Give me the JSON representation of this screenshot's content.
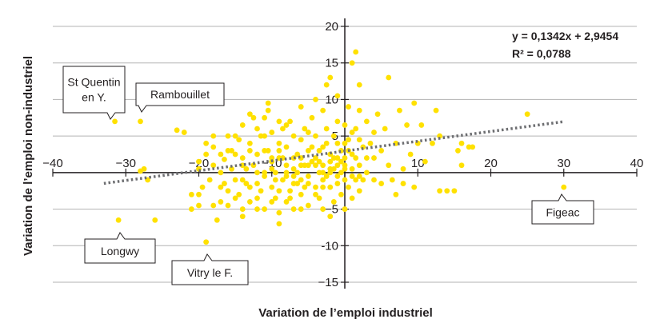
{
  "chart_data": {
    "type": "scatter",
    "xlabel": "Variation de l’emploi industriel",
    "ylabel": "Variation de l’emploi non-industriel",
    "xlim": [
      -40,
      40
    ],
    "ylim": [
      -15,
      20
    ],
    "x_ticks": [
      -40,
      -30,
      -20,
      -10,
      0,
      10,
      20,
      30,
      40
    ],
    "x_tick_labels": [
      "−40",
      "−30",
      "−20",
      "−10",
      "0",
      "10",
      "20",
      "30",
      "40"
    ],
    "y_ticks": [
      -15,
      -10,
      -5,
      0,
      5,
      10,
      15,
      20
    ],
    "y_tick_labels": [
      "−15",
      "-10",
      "−5",
      "0",
      "5",
      "10",
      "15",
      "20"
    ],
    "grid": "horizontal",
    "point_color": "#ffe100",
    "trend_color": "#6d6e71",
    "regression": {
      "slope": 0.1342,
      "intercept": 2.9454,
      "x_range": [
        -33,
        30
      ],
      "equation": "y = 0,1342x  + 2,9454",
      "r2": "R² = 0,0788"
    },
    "annotations": [
      {
        "id": "st-quentin",
        "lines": [
          "St Quentin",
          "en Y."
        ],
        "x": -31.5,
        "y": 7
      },
      {
        "id": "rambouillet",
        "lines": [
          "Rambouillet"
        ],
        "x": -28,
        "y": 7
      },
      {
        "id": "longwy",
        "lines": [
          "Longwy"
        ],
        "x": -31,
        "y": -6.5
      },
      {
        "id": "vitry",
        "lines": [
          "Vitry le F."
        ],
        "x": -19,
        "y": -9.5
      },
      {
        "id": "figeac",
        "lines": [
          "Figeac"
        ],
        "x": 30,
        "y": -2
      }
    ],
    "points": [
      [
        -31.5,
        7
      ],
      [
        -28,
        7
      ],
      [
        -31,
        -6.5
      ],
      [
        -19,
        -9.5
      ],
      [
        30,
        -2
      ],
      [
        -27.5,
        0.5
      ],
      [
        -28,
        0.2
      ],
      [
        -27,
        -1
      ],
      [
        -26,
        -6.5
      ],
      [
        -23,
        5.8
      ],
      [
        -22,
        5.5
      ],
      [
        -21,
        -3
      ],
      [
        -21,
        -5
      ],
      [
        -20,
        -3
      ],
      [
        -20,
        -4.5
      ],
      [
        -20,
        1.5
      ],
      [
        -19,
        2.5
      ],
      [
        -19,
        4
      ],
      [
        -18.5,
        -1
      ],
      [
        -18,
        -4.5
      ],
      [
        -18,
        3.5
      ],
      [
        -17.5,
        -6.5
      ],
      [
        -17,
        -4
      ],
      [
        -17,
        0
      ],
      [
        -16.5,
        1.8
      ],
      [
        -16,
        -2.5
      ],
      [
        -16,
        -4.5
      ],
      [
        -15.5,
        3
      ],
      [
        -15,
        -1
      ],
      [
        -15,
        5
      ],
      [
        -14.5,
        -3
      ],
      [
        -14,
        -5
      ],
      [
        -14,
        2
      ],
      [
        -14,
        6.5
      ],
      [
        -13.5,
        0.5
      ],
      [
        -13,
        -2
      ],
      [
        -13,
        -4
      ],
      [
        -13,
        4
      ],
      [
        -12.5,
        7.5
      ],
      [
        -12,
        -1.5
      ],
      [
        -12,
        2.5
      ],
      [
        -12,
        -3.5
      ],
      [
        -11.5,
        5
      ],
      [
        -11,
        -0.5
      ],
      [
        -11,
        -5
      ],
      [
        -11,
        3
      ],
      [
        -10.5,
        8.5
      ],
      [
        -10.5,
        9.5
      ],
      [
        -10,
        -2
      ],
      [
        -10,
        1.5
      ],
      [
        -10,
        5.5
      ],
      [
        -9.5,
        -3.5
      ],
      [
        -9.5,
        0
      ],
      [
        -9,
        4
      ],
      [
        -9,
        -7
      ],
      [
        -9,
        2
      ],
      [
        -8.5,
        6
      ],
      [
        -8.5,
        -1
      ],
      [
        -8,
        -4
      ],
      [
        -8,
        1
      ],
      [
        -8,
        3.5
      ],
      [
        -7.5,
        7
      ],
      [
        -7.5,
        -2.5
      ],
      [
        -7,
        0.5
      ],
      [
        -7,
        5
      ],
      [
        -7,
        -5
      ],
      [
        -6.5,
        2.5
      ],
      [
        -6.5,
        -1.5
      ],
      [
        -6,
        4.5
      ],
      [
        -6,
        9
      ],
      [
        -6,
        -3
      ],
      [
        -5.5,
        1
      ],
      [
        -5.5,
        6
      ],
      [
        -5,
        -0.5
      ],
      [
        -5,
        3
      ],
      [
        -5,
        -4.5
      ],
      [
        -4.5,
        7.5
      ],
      [
        -4.5,
        1.5
      ],
      [
        -4,
        -2
      ],
      [
        -4,
        5
      ],
      [
        -4,
        10
      ],
      [
        -3.5,
        0
      ],
      [
        -3.5,
        3
      ],
      [
        -3.5,
        -3.5
      ],
      [
        -3,
        8.5
      ],
      [
        -3,
        1
      ],
      [
        -3,
        -1
      ],
      [
        -2.5,
        4
      ],
      [
        -2.5,
        6
      ],
      [
        -2.5,
        12
      ],
      [
        -2,
        0.5
      ],
      [
        -2,
        -2
      ],
      [
        -2,
        13
      ],
      [
        -2,
        -6
      ],
      [
        -1.5,
        2
      ],
      [
        -1.5,
        5
      ],
      [
        -1.5,
        -4
      ],
      [
        -1,
        7
      ],
      [
        -1,
        1
      ],
      [
        -1,
        -1.5
      ],
      [
        -1,
        10.5
      ],
      [
        -0.5,
        3
      ],
      [
        -0.5,
        -3
      ],
      [
        -0.5,
        0
      ],
      [
        0,
        6.5
      ],
      [
        0,
        -1
      ],
      [
        0,
        2
      ],
      [
        0,
        -5
      ],
      [
        0.5,
        4.5
      ],
      [
        0.5,
        -2
      ],
      [
        0.5,
        9
      ],
      [
        1,
        0.5
      ],
      [
        1,
        5.5
      ],
      [
        1,
        -3.5
      ],
      [
        1,
        15
      ],
      [
        1.5,
        2
      ],
      [
        1.5,
        6
      ],
      [
        1.5,
        -1
      ],
      [
        1.5,
        16.5
      ],
      [
        2,
        8.5
      ],
      [
        2,
        1
      ],
      [
        2,
        -2.5
      ],
      [
        2,
        12
      ],
      [
        2.5,
        3.5
      ],
      [
        2.5,
        -1
      ],
      [
        3,
        7
      ],
      [
        3,
        0
      ],
      [
        3.5,
        4
      ],
      [
        4,
        5.5
      ],
      [
        4,
        2
      ],
      [
        4.5,
        8
      ],
      [
        5,
        -1.5
      ],
      [
        5,
        3
      ],
      [
        5.5,
        6
      ],
      [
        6,
        13
      ],
      [
        6,
        1
      ],
      [
        6.5,
        -1
      ],
      [
        7,
        4
      ],
      [
        7,
        -3
      ],
      [
        7.5,
        8.5
      ],
      [
        8,
        0.5
      ],
      [
        8,
        -1.5
      ],
      [
        8.5,
        6.5
      ],
      [
        9,
        2.5
      ],
      [
        9.5,
        9.5
      ],
      [
        9.5,
        -2
      ],
      [
        10,
        4
      ],
      [
        10.5,
        6.5
      ],
      [
        11,
        1.5
      ],
      [
        12,
        4
      ],
      [
        12.5,
        8.5
      ],
      [
        13,
        5
      ],
      [
        13,
        -2.5
      ],
      [
        14,
        -2.5
      ],
      [
        15,
        -2.5
      ],
      [
        15.5,
        3
      ],
      [
        16,
        4
      ],
      [
        16,
        1
      ],
      [
        17,
        3.5
      ],
      [
        17.5,
        3.5
      ],
      [
        25,
        8
      ],
      [
        -16,
        5
      ],
      [
        -14,
        -6
      ],
      [
        -12,
        6
      ],
      [
        -9,
        -5.5
      ],
      [
        -6,
        -5
      ],
      [
        -3,
        -5
      ],
      [
        -13.5,
        -1.5
      ],
      [
        -12.5,
        1
      ],
      [
        -11.5,
        -2.5
      ],
      [
        -10.5,
        3
      ],
      [
        -9.5,
        -1
      ],
      [
        -8.5,
        2
      ],
      [
        -7.5,
        -3.5
      ],
      [
        -6.5,
        0
      ],
      [
        -5.5,
        -2
      ],
      [
        -4.5,
        3.5
      ],
      [
        -3.5,
        1.5
      ],
      [
        -2.5,
        -0.5
      ],
      [
        -1.5,
        0.5
      ],
      [
        -0.5,
        1.5
      ],
      [
        0.5,
        3
      ],
      [
        -18,
        1
      ],
      [
        -17,
        2.5
      ],
      [
        -16.5,
        -1.5
      ],
      [
        -15.5,
        0.5
      ],
      [
        -15,
        -3.5
      ],
      [
        -14.5,
        4.5
      ],
      [
        -13,
        8
      ],
      [
        -11,
        7.5
      ],
      [
        -10,
        -4
      ],
      [
        -9,
        7
      ],
      [
        -8,
        6.5
      ],
      [
        -7,
        2
      ],
      [
        -6,
        -1
      ],
      [
        -5,
        1
      ],
      [
        -4,
        -3
      ],
      [
        -3,
        3.5
      ],
      [
        -2,
        2.5
      ],
      [
        -1,
        4
      ],
      [
        0,
        0.5
      ],
      [
        1,
        -0.5
      ],
      [
        2,
        4.5
      ],
      [
        3,
        2
      ],
      [
        4,
        -1
      ],
      [
        -20,
        0.5
      ],
      [
        -19.5,
        -2
      ],
      [
        -18,
        5
      ],
      [
        -17,
        -2
      ],
      [
        -16,
        3
      ],
      [
        -14,
        1
      ],
      [
        -12,
        -5
      ],
      [
        -11,
        0
      ],
      [
        -10,
        0.5
      ],
      [
        -9,
        -2.5
      ],
      [
        -8,
        -0.5
      ],
      [
        -7,
        -1.5
      ],
      [
        -6,
        2
      ],
      [
        -5,
        5.5
      ],
      [
        -4,
        1
      ],
      [
        -3,
        0
      ],
      [
        -2,
        0
      ],
      [
        -1,
        -0.5
      ],
      [
        0,
        4
      ],
      [
        1,
        2.5
      ],
      [
        -13,
        3
      ],
      [
        -11,
        5
      ],
      [
        -9,
        3
      ],
      [
        -7,
        -0.5
      ],
      [
        -5,
        -1.5
      ],
      [
        -3,
        -2
      ],
      [
        -1,
        2
      ],
      [
        -15,
        2.5
      ],
      [
        -14,
        -1
      ],
      [
        -12,
        0
      ],
      [
        -10,
        2
      ],
      [
        -8,
        0
      ],
      [
        -6,
        1
      ],
      [
        -4,
        2
      ],
      [
        -2,
        1.5
      ],
      [
        0,
        1
      ],
      [
        2,
        -0.5
      ]
    ]
  }
}
